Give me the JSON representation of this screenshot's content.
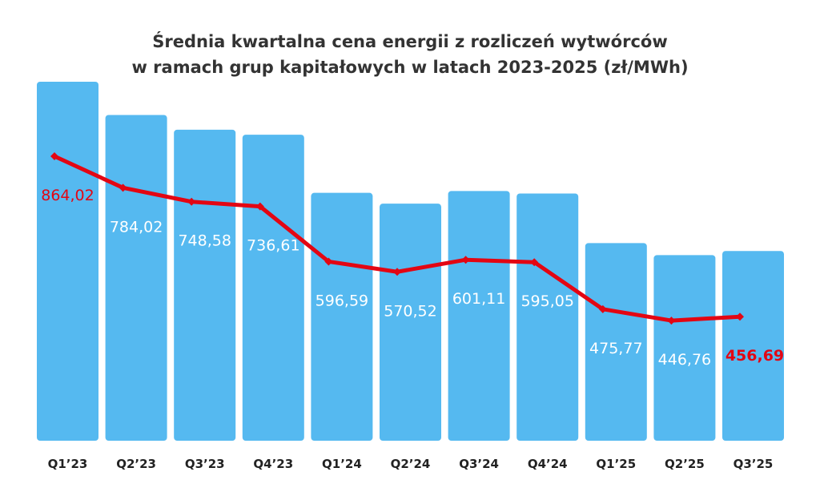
{
  "chart_data": {
    "type": "bar",
    "title": "Średnia kwartalna cena energii z rozliczeń wytwórców",
    "subtitle": "w ramach grup kapitałowych w latach 2023-2025 (zł/MWh)",
    "categories": [
      "Q1’23",
      "Q2’23",
      "Q3’23",
      "Q4’23",
      "Q1’24",
      "Q2’24",
      "Q3’24",
      "Q4’24",
      "Q1’25",
      "Q2’25",
      "Q3’25"
    ],
    "series": [
      {
        "values": [
          864.02,
          784.02,
          748.58,
          736.61,
          596.59,
          570.52,
          601.11,
          595.05,
          475.77,
          446.76,
          456.69
        ],
        "labels": [
          "864,02",
          "784,02",
          "748,58",
          "736,61",
          "596,59",
          "570,52",
          "601,11",
          "595,05",
          "475,77",
          "446,76",
          "456,69"
        ]
      }
    ],
    "overlay_line": "same values drawn as a red line with diamond markers",
    "ylim": [
      0,
      960
    ],
    "grid": false,
    "legend": "none"
  },
  "colors": {
    "bar": "#55b9f0",
    "line": "#e30613",
    "label_on_bar": "#ffffff",
    "label_highlight": "#e30613",
    "title": "#333333",
    "category_label": "#222222"
  }
}
